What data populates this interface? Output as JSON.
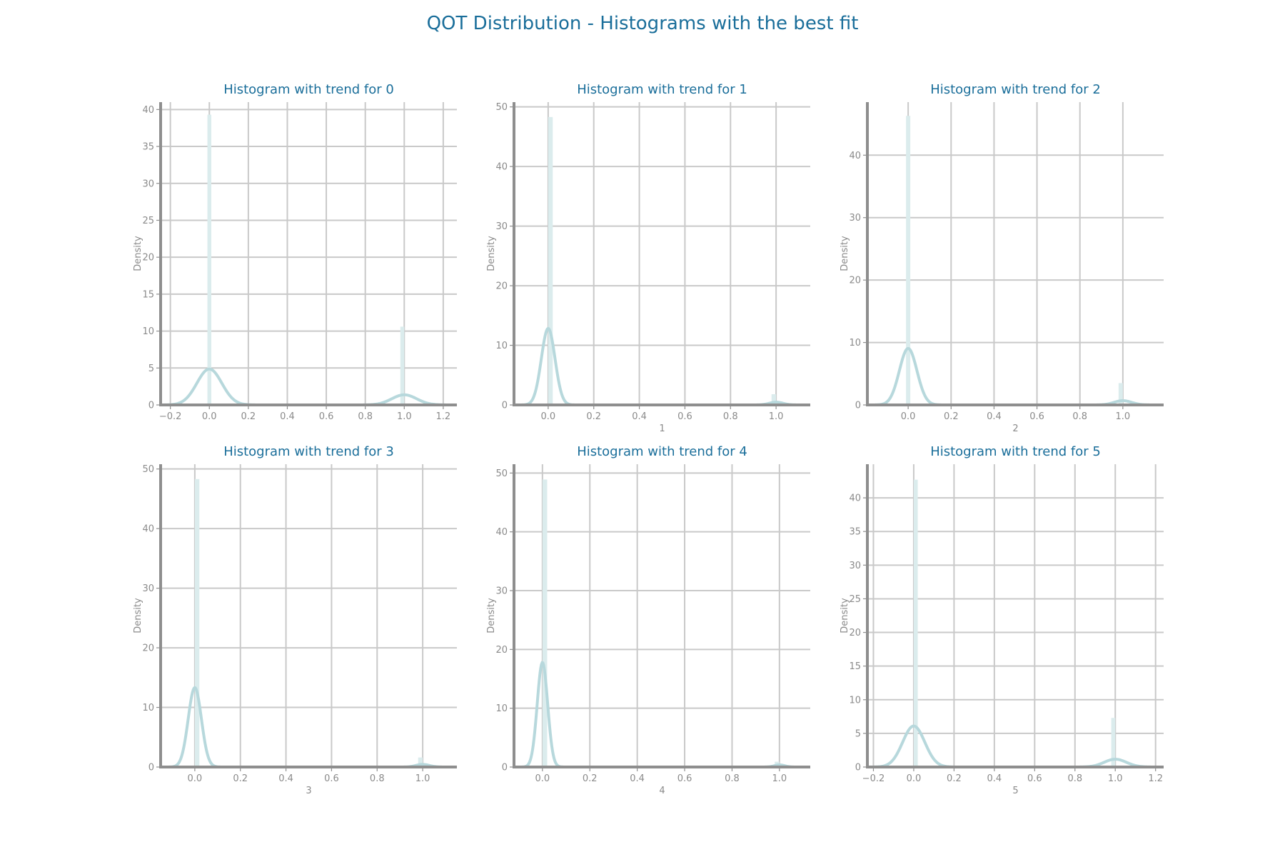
{
  "figure": {
    "title": "QOT Distribution - Histograms with the best fit"
  },
  "colors": {
    "title": "#1a6e9a",
    "bar": "#dbeced",
    "kde": "#b7d8dc",
    "grid": "#c9c9c9",
    "spine": "#8e8e8e",
    "tick_text": "#8a8a8a"
  },
  "chart_data": [
    {
      "type": "histogram",
      "title": "Histogram with trend for 0",
      "xlabel": "",
      "ylabel": "Density",
      "xlim": [
        -0.25,
        1.27
      ],
      "ylim": [
        0,
        41
      ],
      "xticks": [
        -0.2,
        0.0,
        0.2,
        0.4,
        0.6,
        0.8,
        1.0,
        1.2
      ],
      "xtick_labels": [
        "−0.2",
        "0.0",
        "0.2",
        "0.4",
        "0.6",
        "0.8",
        "1.0",
        "1.2"
      ],
      "yticks": [
        0,
        5,
        10,
        15,
        20,
        25,
        30,
        35,
        40
      ],
      "bars": [
        {
          "x": 0.0,
          "density": 39.3
        },
        {
          "x": 0.99,
          "density": 10.6
        }
      ],
      "kde": [
        {
          "mean": 0.0,
          "sd": 0.064,
          "weight": 0.78
        },
        {
          "mean": 1.0,
          "sd": 0.064,
          "weight": 0.22
        }
      ]
    },
    {
      "type": "histogram",
      "title": "Histogram with trend for 1",
      "xlabel": "1",
      "ylabel": "Density",
      "xlim": [
        -0.15,
        1.15
      ],
      "ylim": [
        0,
        50.8
      ],
      "xticks": [
        0.0,
        0.2,
        0.4,
        0.6,
        0.8,
        1.0
      ],
      "xtick_labels": [
        "0.0",
        "0.2",
        "0.4",
        "0.6",
        "0.8",
        "1.0"
      ],
      "yticks": [
        0,
        10,
        20,
        30,
        40,
        50
      ],
      "bars": [
        {
          "x": 0.01,
          "density": 48.3
        },
        {
          "x": 0.99,
          "density": 1.8
        }
      ],
      "kde": [
        {
          "mean": 0.0,
          "sd": 0.03,
          "weight": 0.965
        },
        {
          "mean": 1.0,
          "sd": 0.03,
          "weight": 0.035
        }
      ]
    },
    {
      "type": "histogram",
      "title": "Histogram with trend for 2",
      "xlabel": "2",
      "ylabel": "Density",
      "xlim": [
        -0.19,
        1.19
      ],
      "ylim": [
        0,
        48.5
      ],
      "xticks": [
        0.0,
        0.2,
        0.4,
        0.6,
        0.8,
        1.0
      ],
      "xtick_labels": [
        "0.0",
        "0.2",
        "0.4",
        "0.6",
        "0.8",
        "1.0"
      ],
      "yticks": [
        0,
        10,
        20,
        30,
        40
      ],
      "bars": [
        {
          "x": 0.0,
          "density": 46.3
        },
        {
          "x": 0.99,
          "density": 3.5
        }
      ],
      "kde": [
        {
          "mean": 0.0,
          "sd": 0.041,
          "weight": 0.93
        },
        {
          "mean": 1.0,
          "sd": 0.041,
          "weight": 0.07
        }
      ]
    },
    {
      "type": "histogram",
      "title": "Histogram with trend for 3",
      "xlabel": "3",
      "ylabel": "Density",
      "xlim": [
        -0.15,
        1.15
      ],
      "ylim": [
        0,
        50.8
      ],
      "xticks": [
        0.0,
        0.2,
        0.4,
        0.6,
        0.8,
        1.0
      ],
      "xtick_labels": [
        "0.0",
        "0.2",
        "0.4",
        "0.6",
        "0.8",
        "1.0"
      ],
      "yticks": [
        0,
        10,
        20,
        30,
        40,
        50
      ],
      "bars": [
        {
          "x": 0.01,
          "density": 48.3
        },
        {
          "x": 0.99,
          "density": 1.6
        }
      ],
      "kde": [
        {
          "mean": 0.0,
          "sd": 0.029,
          "weight": 0.968
        },
        {
          "mean": 1.0,
          "sd": 0.029,
          "weight": 0.032
        }
      ]
    },
    {
      "type": "histogram",
      "title": "Histogram with trend for 4",
      "xlabel": "4",
      "ylabel": "Density",
      "xlim": [
        -0.12,
        1.13
      ],
      "ylim": [
        0,
        51.5
      ],
      "xticks": [
        0.0,
        0.2,
        0.4,
        0.6,
        0.8,
        1.0
      ],
      "xtick_labels": [
        "0.0",
        "0.2",
        "0.4",
        "0.6",
        "0.8",
        "1.0"
      ],
      "yticks": [
        0,
        10,
        20,
        30,
        40,
        50
      ],
      "bars": [
        {
          "x": 0.01,
          "density": 48.9
        },
        {
          "x": 0.99,
          "density": 0.9
        }
      ],
      "kde": [
        {
          "mean": 0.0,
          "sd": 0.022,
          "weight": 0.98
        },
        {
          "mean": 1.0,
          "sd": 0.022,
          "weight": 0.02
        }
      ]
    },
    {
      "type": "histogram",
      "title": "Histogram with trend for 5",
      "xlabel": "5",
      "ylabel": "Density",
      "xlim": [
        -0.23,
        1.24
      ],
      "ylim": [
        0,
        45
      ],
      "xticks": [
        -0.2,
        0.0,
        0.2,
        0.4,
        0.6,
        0.8,
        1.0,
        1.2
      ],
      "xtick_labels": [
        "−0.2",
        "0.0",
        "0.2",
        "0.4",
        "0.6",
        "0.8",
        "1.0",
        "1.2"
      ],
      "yticks": [
        0,
        5,
        10,
        15,
        20,
        25,
        30,
        35,
        40
      ],
      "bars": [
        {
          "x": 0.01,
          "density": 42.7
        },
        {
          "x": 0.99,
          "density": 7.3
        }
      ],
      "kde": [
        {
          "mean": 0.0,
          "sd": 0.055,
          "weight": 0.84
        },
        {
          "mean": 1.0,
          "sd": 0.055,
          "weight": 0.16
        }
      ]
    }
  ]
}
